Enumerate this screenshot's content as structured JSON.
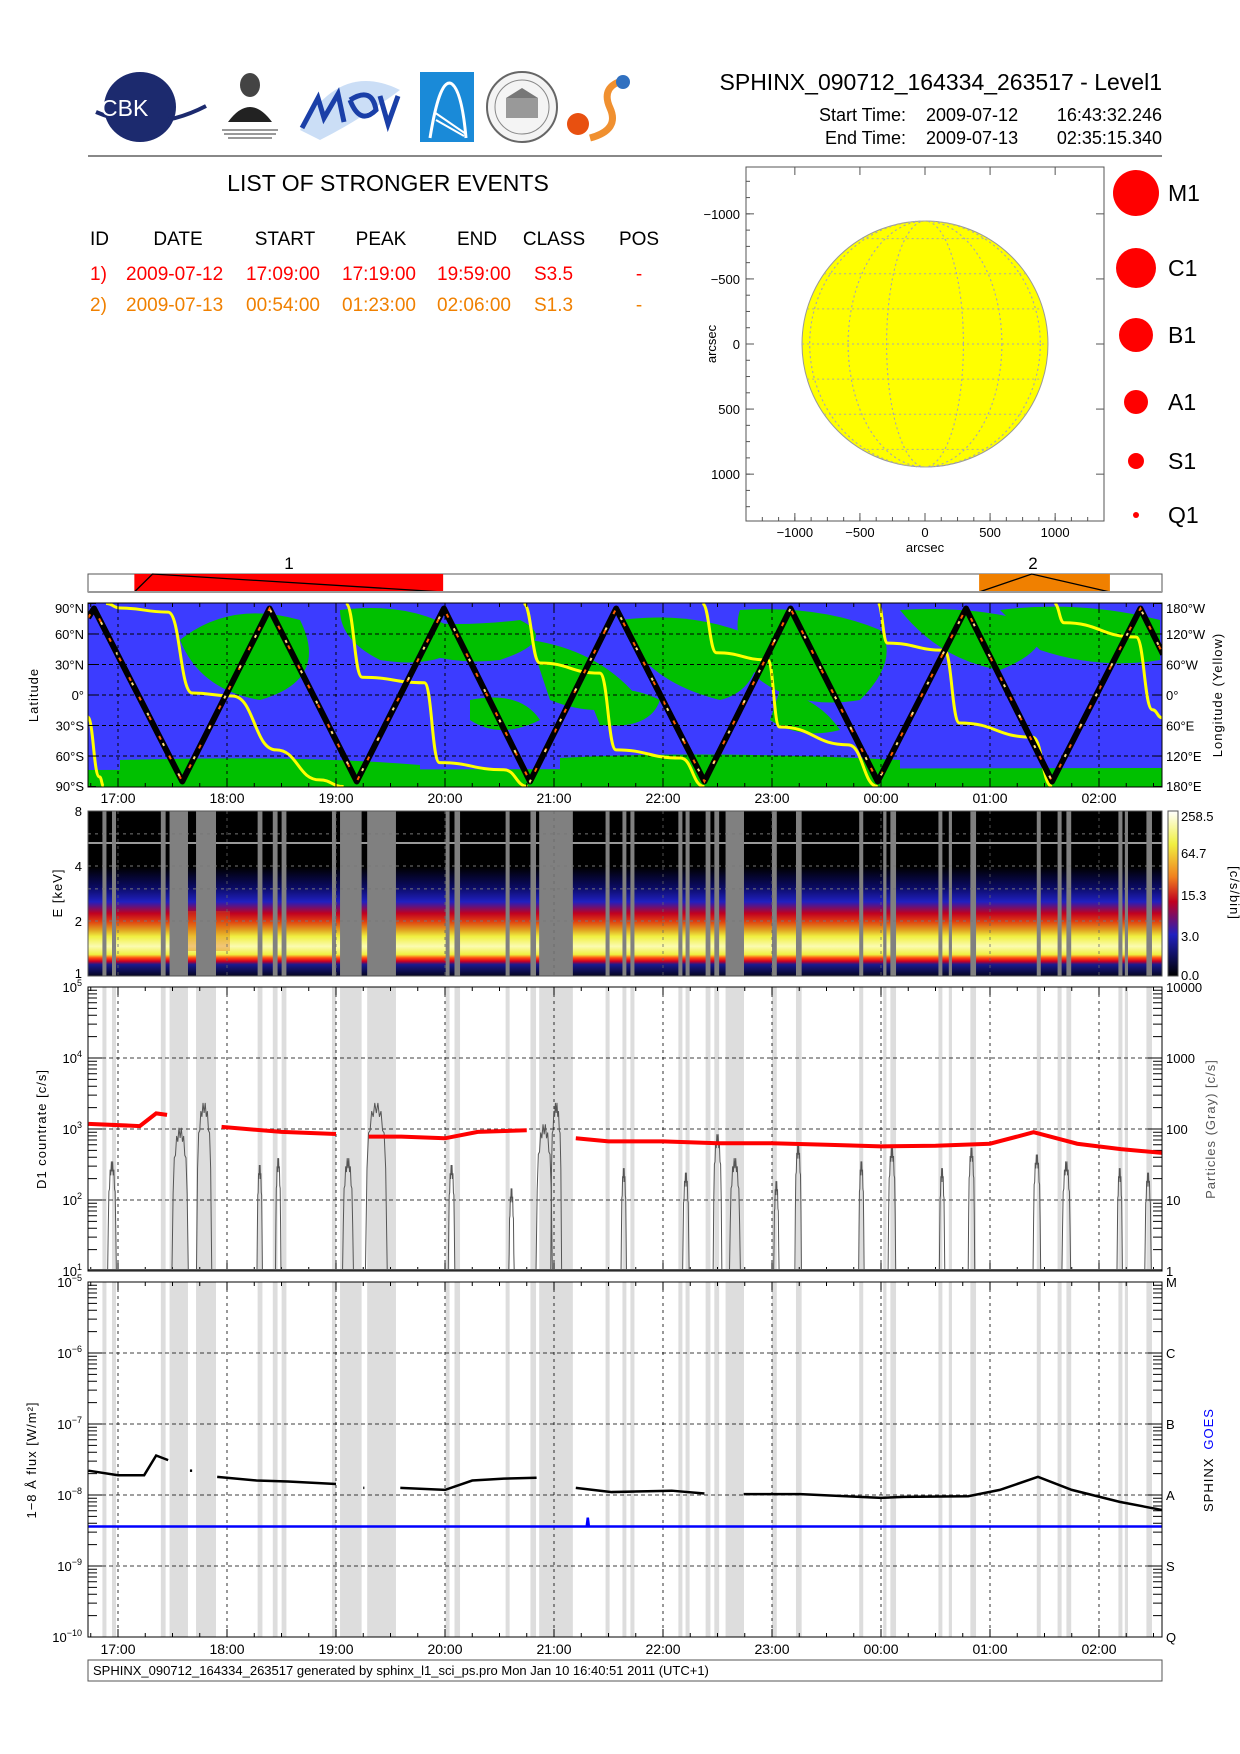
{
  "header": {
    "title": "SPHINX_090712_164334_263517 - Level1",
    "start_label": "Start Time:",
    "start_date": "2009-07-12",
    "start_time": "16:43:32.246",
    "end_label": "End Time:",
    "end_date": "2009-07-13",
    "end_time": "02:35:15.340"
  },
  "logos": {
    "cbk": "CBK",
    "pan": "PAN",
    "lebedev": "P.N.Lebedev Physical Institute of the Russian Academy of Science"
  },
  "events": {
    "title": "LIST OF STRONGER EVENTS",
    "columns": [
      "ID",
      "DATE",
      "START",
      "PEAK",
      "END",
      "CLASS",
      "POS"
    ],
    "rows": [
      {
        "id": "1)",
        "date": "2009-07-12",
        "start": "17:09:00",
        "peak": "17:19:00",
        "end": "19:59:00",
        "class": "S3.5",
        "pos": "-",
        "color": "#ff0000"
      },
      {
        "id": "2)",
        "date": "2009-07-13",
        "start": "00:54:00",
        "peak": "01:23:00",
        "end": "02:06:00",
        "class": "S1.3",
        "pos": "-",
        "color": "#f08000"
      }
    ]
  },
  "legend": [
    {
      "label": "M1",
      "size": 6
    },
    {
      "label": "C1",
      "size": 5
    },
    {
      "label": "B1",
      "size": 4
    },
    {
      "label": "A1",
      "size": 3
    },
    {
      "label": "S1",
      "size": 2
    },
    {
      "label": "Q1",
      "size": 1
    }
  ],
  "event_bar": [
    {
      "label": "1",
      "start": 17.15,
      "peak": 17.317,
      "end": 19.983,
      "color": "#ff0000"
    },
    {
      "label": "2",
      "start": 24.9,
      "peak": 25.383,
      "end": 26.1,
      "color": "#f08000"
    }
  ],
  "time_labels": [
    "17:00",
    "18:00",
    "19:00",
    "20:00",
    "21:00",
    "22:00",
    "23:00",
    "00:00",
    "01:00",
    "02:00"
  ],
  "footer": "SPHINX_090712_164334_263517 generated by sphinx_l1_sci_ps.pro Mon Jan 10 16:40:51 2011 (UTC+1)",
  "chart_data": [
    {
      "type": "scatter",
      "name": "solar-disk",
      "xlabel": "arcsec",
      "ylabel": "arcsec",
      "xlim": [
        -1360,
        1360
      ],
      "ylim": [
        -1360,
        1360
      ],
      "xticks": [
        "−1000",
        "−500",
        "0",
        "500",
        "1000"
      ],
      "yticks": [
        "1000",
        "500",
        "0",
        "−500",
        "−1000"
      ],
      "tick_values": [
        -1000,
        -500,
        0,
        500,
        1000
      ],
      "solar_radius": 945,
      "disk_color": "#ffff00"
    },
    {
      "type": "line",
      "name": "orbit-map",
      "xlabel": "",
      "ylabel": "Latitude",
      "y2label": "Longitude (Yellow)",
      "lat_ticks": [
        "90°N",
        "60°N",
        "30°N",
        "0°",
        "30°S",
        "60°S",
        "90°S"
      ],
      "lon_ticks": [
        "180°W",
        "120°W",
        "60°W",
        "0°",
        "60°E",
        "120°E",
        "180°E"
      ],
      "xlim_hours": [
        16.726,
        26.588
      ],
      "latitude_track": [
        [
          16.726,
          76
        ],
        [
          16.78,
          85
        ],
        [
          17.59,
          -85
        ],
        [
          18.39,
          85
        ],
        [
          19.19,
          -85
        ],
        [
          19.99,
          85
        ],
        [
          20.78,
          -85
        ],
        [
          21.57,
          85
        ],
        [
          22.38,
          -85
        ],
        [
          23.17,
          85
        ],
        [
          23.97,
          -85
        ],
        [
          24.78,
          85
        ],
        [
          25.57,
          -85
        ],
        [
          26.38,
          85
        ],
        [
          26.588,
          40
        ]
      ],
      "longitude_tracks": [
        [
          [
            16.72,
            -43
          ],
          [
            16.83,
            -161
          ],
          [
            16.87,
            -180
          ]
        ],
        [
          [
            16.89,
            180
          ],
          [
            17.02,
            171
          ],
          [
            17.46,
            163
          ],
          [
            17.68,
            4
          ],
          [
            18.05,
            -2
          ],
          [
            18.45,
            -108
          ],
          [
            18.85,
            -167
          ],
          [
            19.07,
            -180
          ]
        ],
        [
          [
            19.09,
            180
          ],
          [
            19.24,
            35
          ],
          [
            19.81,
            24
          ],
          [
            19.95,
            -133
          ],
          [
            20.54,
            -147
          ],
          [
            20.76,
            -180
          ]
        ],
        [
          [
            20.72,
            180
          ],
          [
            20.87,
            63
          ],
          [
            21.42,
            43
          ],
          [
            21.57,
            -108
          ],
          [
            22.16,
            -124
          ],
          [
            22.38,
            -180
          ]
        ],
        [
          [
            22.36,
            180
          ],
          [
            22.49,
            83
          ],
          [
            22.96,
            69
          ],
          [
            23.07,
            -63
          ],
          [
            23.7,
            -98
          ],
          [
            23.97,
            -180
          ]
        ],
        [
          [
            23.97,
            180
          ],
          [
            24.06,
            102
          ],
          [
            24.58,
            88
          ],
          [
            24.72,
            -55
          ],
          [
            25.39,
            -83
          ],
          [
            25.57,
            -180
          ]
        ],
        [
          [
            25.59,
            180
          ],
          [
            25.68,
            142
          ],
          [
            26.34,
            114
          ],
          [
            26.49,
            -29
          ],
          [
            26.58,
            -45
          ]
        ]
      ],
      "colors": {
        "ocean": "#3c3cff",
        "land": "#00c000",
        "longitude": "#ffff00",
        "track": "#000000"
      }
    },
    {
      "type": "heatmap",
      "name": "spectrogram",
      "ylabel": "E [keV]",
      "yticks": [
        "1",
        "2",
        "4",
        "8"
      ],
      "ylim": [
        1,
        8
      ],
      "colorbar_label": "[c/s/bin]",
      "colorbar_ticks": [
        "258.5",
        "64.7",
        "15.3",
        "3.0",
        "0.0"
      ]
    },
    {
      "type": "line",
      "name": "d1-countrate",
      "ylabel": "D1 countrate [c/s]",
      "y2label": "Particles (Gray) [c/s]",
      "ylim": [
        10,
        100000
      ],
      "yscale": "log",
      "yticks": [
        {
          "base": "10",
          "exp": "1"
        },
        {
          "base": "10",
          "exp": "2"
        },
        {
          "base": "10",
          "exp": "3"
        },
        {
          "base": "10",
          "exp": "4"
        },
        {
          "base": "10",
          "exp": "5"
        }
      ],
      "y2ticks": [
        "1",
        "10",
        "100",
        "1000",
        "10000"
      ],
      "countrate": [
        [
          16.73,
          1180
        ],
        [
          17.2,
          1100
        ],
        [
          17.35,
          1660
        ],
        [
          17.45,
          1580
        ],
        null,
        [
          17.65,
          1180
        ],
        null,
        [
          17.95,
          1070
        ],
        [
          18.5,
          910
        ],
        [
          19.0,
          850
        ],
        null,
        [
          19.3,
          780
        ],
        [
          19.6,
          780
        ],
        [
          20.0,
          740
        ],
        [
          20.3,
          910
        ],
        [
          20.75,
          960
        ],
        null,
        [
          21.2,
          740
        ],
        [
          21.5,
          670
        ],
        [
          22.0,
          670
        ],
        [
          22.5,
          630
        ],
        [
          23.0,
          630
        ],
        [
          23.5,
          600
        ],
        [
          24.0,
          570
        ],
        [
          24.5,
          580
        ],
        [
          25.0,
          620
        ],
        [
          25.4,
          900
        ],
        [
          25.8,
          620
        ],
        [
          26.2,
          520
        ],
        [
          26.59,
          460
        ]
      ],
      "particle_peaks": [
        [
          16.945,
          36,
          0.08
        ],
        [
          17.57,
          107,
          0.15
        ],
        [
          17.79,
          240,
          0.14
        ],
        [
          18.3,
          32,
          0.05
        ],
        [
          18.47,
          40,
          0.05
        ],
        [
          19.11,
          40,
          0.1
        ],
        [
          19.37,
          240,
          0.2
        ],
        [
          20.06,
          32,
          0.06
        ],
        [
          20.61,
          15,
          0.05
        ],
        [
          20.91,
          120,
          0.15
        ],
        [
          21.02,
          240,
          0.1
        ],
        [
          21.64,
          29,
          0.05
        ],
        [
          22.21,
          25,
          0.06
        ],
        [
          22.5,
          87,
          0.08
        ],
        [
          22.66,
          40,
          0.1
        ],
        [
          23.04,
          19,
          0.05
        ],
        [
          23.24,
          62,
          0.06
        ],
        [
          23.82,
          36,
          0.05
        ],
        [
          24.1,
          56,
          0.07
        ],
        [
          24.56,
          29,
          0.05
        ],
        [
          24.83,
          56,
          0.06
        ],
        [
          25.43,
          45,
          0.07
        ],
        [
          25.7,
          36,
          0.08
        ],
        [
          26.19,
          29,
          0.05
        ],
        [
          26.45,
          25,
          0.06
        ]
      ],
      "colors": {
        "countrate": "#ff0000",
        "particles": "#555555"
      }
    },
    {
      "type": "line",
      "name": "flux-1-8A",
      "ylabel": "1−8 Å flux [W/m²]",
      "y2label_sphinx": "SPHINX",
      "y2label_goes": "GOES",
      "ylim": [
        1e-10,
        1e-05
      ],
      "yscale": "log",
      "yticks": [
        {
          "base": "10",
          "exp": "−10"
        },
        {
          "base": "10",
          "exp": "−9"
        },
        {
          "base": "10",
          "exp": "−8"
        },
        {
          "base": "10",
          "exp": "−7"
        },
        {
          "base": "10",
          "exp": "−6"
        },
        {
          "base": "10",
          "exp": "−5"
        }
      ],
      "y2ticks": [
        "Q",
        "S",
        "A",
        "B",
        "C",
        "M"
      ],
      "sphinx": [
        [
          16.73,
          2.2e-08
        ],
        [
          17.0,
          1.9e-08
        ],
        [
          17.24,
          1.9e-08
        ],
        [
          17.35,
          3.6e-08
        ],
        [
          17.46,
          3.1e-08
        ],
        null,
        [
          17.66,
          2.2e-08
        ],
        [
          17.68,
          2.2e-08
        ],
        null,
        [
          17.91,
          1.8e-08
        ],
        [
          18.27,
          1.6e-08
        ],
        [
          18.56,
          1.55e-08
        ],
        [
          19.0,
          1.43e-08
        ],
        null,
        [
          19.25,
          1.26e-08
        ],
        [
          19.26,
          1.26e-08
        ],
        null,
        [
          19.59,
          1.26e-08
        ],
        [
          20.0,
          1.18e-08
        ],
        [
          20.25,
          1.6e-08
        ],
        [
          20.54,
          1.7e-08
        ],
        [
          20.84,
          1.75e-08
        ],
        null,
        [
          21.2,
          1.26e-08
        ],
        [
          21.53,
          1.1e-08
        ],
        [
          22.08,
          1.15e-08
        ],
        [
          22.38,
          1.05e-08
        ],
        null,
        [
          22.74,
          1.03e-08
        ],
        [
          23.26,
          1.03e-08
        ],
        [
          24.0,
          9.1e-09
        ],
        [
          24.21,
          9.4e-09
        ],
        [
          24.8,
          9.6e-09
        ],
        [
          25.09,
          1.18e-08
        ],
        [
          25.44,
          1.8e-08
        ],
        [
          25.75,
          1.18e-08
        ],
        [
          26.19,
          8e-09
        ],
        [
          26.59,
          6.1e-09
        ]
      ],
      "goes": [
        [
          16.73,
          3.6e-09
        ],
        [
          21.3,
          3.6e-09
        ],
        [
          21.31,
          4.8e-09
        ],
        [
          21.32,
          3.6e-09
        ],
        [
          26.59,
          3.6e-09
        ]
      ],
      "colors": {
        "sphinx": "#000000",
        "goes": "#0000ff"
      }
    }
  ],
  "data_gaps_hours": [
    [
      16.857,
      16.894
    ],
    [
      16.945,
      16.982
    ],
    [
      17.393,
      17.437
    ],
    [
      17.473,
      17.642
    ],
    [
      17.716,
      17.899
    ],
    [
      18.281,
      18.325
    ],
    [
      18.42,
      18.464
    ],
    [
      18.501,
      18.545
    ],
    [
      18.963,
      19.0
    ],
    [
      19.037,
      19.235
    ],
    [
      19.286,
      19.55
    ],
    [
      20.006,
      20.042
    ],
    [
      20.087,
      20.138
    ],
    [
      20.556,
      20.593
    ],
    [
      20.784,
      20.835
    ],
    [
      20.864,
      21.173
    ],
    [
      21.473,
      21.51
    ],
    [
      21.628,
      21.664
    ],
    [
      21.701,
      21.738
    ],
    [
      22.141,
      22.178
    ],
    [
      22.207,
      22.244
    ],
    [
      22.391,
      22.435
    ],
    [
      22.471,
      22.515
    ],
    [
      22.574,
      22.743
    ],
    [
      23.0,
      23.044
    ],
    [
      23.22,
      23.272
    ],
    [
      23.8,
      23.837
    ],
    [
      24.02,
      24.05
    ],
    [
      24.086,
      24.138
    ],
    [
      24.527,
      24.563
    ],
    [
      24.622,
      24.651
    ],
    [
      24.82,
      24.872
    ],
    [
      25.429,
      25.466
    ],
    [
      25.62,
      25.657
    ],
    [
      25.701,
      25.745
    ],
    [
      26.178,
      26.215
    ],
    [
      26.237,
      26.266
    ],
    [
      26.435,
      26.486
    ]
  ]
}
